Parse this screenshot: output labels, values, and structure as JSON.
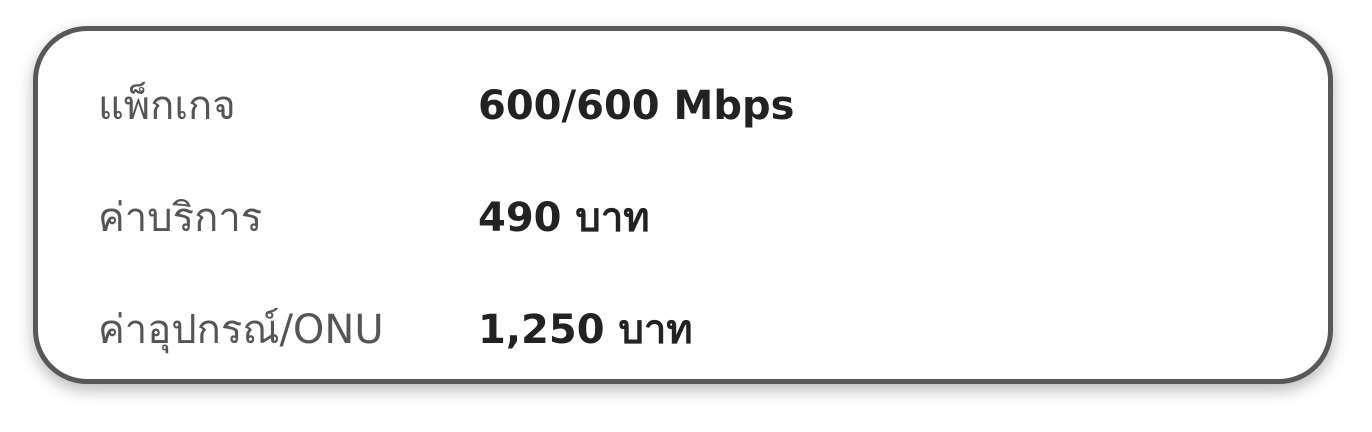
{
  "info_card": {
    "rows": [
      {
        "label": "แพ็กเกจ",
        "value": "600/600 Mbps"
      },
      {
        "label": "ค่าบริการ",
        "value": "490 บาท"
      },
      {
        "label": "ค่าอุปกรณ์/ONU",
        "value": "1,250 บาท"
      }
    ]
  },
  "colors": {
    "border": "#555a59",
    "label_text": "#555555",
    "value_text": "#222222",
    "background": "#ffffff"
  }
}
